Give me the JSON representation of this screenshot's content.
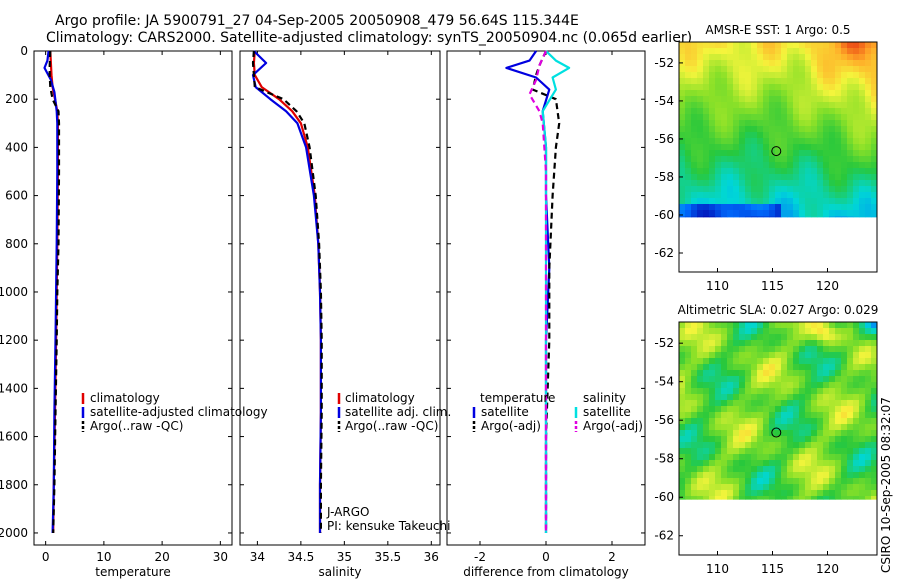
{
  "header": {
    "line1": "Argo profile: JA 5900791_27 04-Sep-2005 20050908_479 56.64S 115.344E",
    "line2": "Climatology: CARS2000. Satellite-adjusted climatology: synTS_20050904.nc (0.065d earlier)"
  },
  "colors": {
    "climatology": "#e00000",
    "satellite": "#0000e0",
    "argo": "#000000",
    "sal_satellite": "#00e0e0",
    "sal_argo": "#e000e0"
  },
  "chart_data": [
    {
      "type": "line",
      "name": "temperature-profile",
      "xlabel": "temperature",
      "ylabel": "",
      "xlim": [
        -2,
        32
      ],
      "ylim": [
        2050,
        0
      ],
      "xticks": [
        0,
        10,
        20,
        30
      ],
      "xtick_labels": [
        "0",
        "10",
        "20",
        "30"
      ],
      "yticks": [
        0,
        200,
        400,
        600,
        800,
        1000,
        1200,
        1400,
        1600,
        1800,
        2000
      ],
      "ytick_labels": [
        "0",
        "200",
        "400",
        "600",
        "800",
        "1000",
        "1200",
        "1400",
        "1600",
        "1800",
        "2000"
      ],
      "legend": [
        "climatology",
        "satellite-adjusted climatology",
        "Argo(..raw -QC)"
      ],
      "series": [
        {
          "name": "climatology",
          "color": "#e00000",
          "dashed": false,
          "x": [
            0.8,
            0.9,
            1.0,
            1.2,
            1.6,
            2.0,
            2.1,
            2.1,
            2.0,
            1.9,
            1.8,
            1.6,
            1.4,
            1.3
          ],
          "y": [
            0,
            50,
            100,
            150,
            200,
            250,
            300,
            500,
            800,
            1000,
            1200,
            1500,
            1800,
            2000
          ]
        },
        {
          "name": "satellite-adjusted climatology",
          "color": "#0000e0",
          "dashed": false,
          "x": [
            0.5,
            0.3,
            -0.2,
            0.9,
            1.5,
            1.9,
            2.0,
            2.0,
            1.9,
            1.8,
            1.7,
            1.5,
            1.4,
            1.2
          ],
          "y": [
            0,
            40,
            70,
            120,
            170,
            250,
            300,
            500,
            800,
            1000,
            1200,
            1500,
            1800,
            2000
          ]
        },
        {
          "name": "Argo(..raw -QC)",
          "color": "#000000",
          "dashed": true,
          "x": [
            0.8,
            0.7,
            0.7,
            0.8,
            1.2,
            2.2,
            2.3,
            2.3,
            2.2,
            2.0,
            1.9,
            1.7,
            1.5,
            1.3
          ],
          "y": [
            0,
            60,
            100,
            150,
            200,
            250,
            300,
            500,
            800,
            1000,
            1200,
            1500,
            1800,
            2000
          ]
        }
      ]
    },
    {
      "type": "line",
      "name": "salinity-profile",
      "xlabel": "salinity",
      "xlim": [
        33.8,
        36.1
      ],
      "ylim": [
        2050,
        0
      ],
      "xticks": [
        34,
        34.5,
        35,
        35.5,
        36
      ],
      "xtick_labels": [
        "34",
        "34.5",
        "35",
        "35.5",
        "36"
      ],
      "legend": [
        "climatology",
        "satellite adj. clim.",
        "Argo(..raw -QC)"
      ],
      "annotation": [
        "J-ARGO",
        "PI: kensuke Takeuchi"
      ],
      "series": [
        {
          "name": "climatology",
          "color": "#e00000",
          "dashed": false,
          "x": [
            33.97,
            33.96,
            33.97,
            34.05,
            34.25,
            34.4,
            34.5,
            34.58,
            34.66,
            34.7,
            34.72,
            34.73,
            34.73,
            34.72,
            34.72
          ],
          "y": [
            0,
            50,
            100,
            150,
            200,
            250,
            300,
            400,
            600,
            800,
            1000,
            1200,
            1500,
            1800,
            2000
          ]
        },
        {
          "name": "satellite adj. clim.",
          "color": "#0000e0",
          "dashed": false,
          "x": [
            33.96,
            34.1,
            33.95,
            33.98,
            34.15,
            34.33,
            34.46,
            34.56,
            34.65,
            34.7,
            34.72,
            34.73,
            34.73,
            34.72,
            34.72
          ],
          "y": [
            0,
            50,
            100,
            150,
            200,
            250,
            300,
            400,
            600,
            800,
            1000,
            1200,
            1500,
            1800,
            2000
          ]
        },
        {
          "name": "Argo(..raw -QC)",
          "color": "#000000",
          "dashed": true,
          "x": [
            33.96,
            33.95,
            33.96,
            33.97,
            34.3,
            34.45,
            34.54,
            34.6,
            34.67,
            34.71,
            34.73,
            34.74,
            34.74,
            34.73,
            34.73
          ],
          "y": [
            0,
            50,
            100,
            150,
            200,
            250,
            300,
            400,
            600,
            800,
            1000,
            1200,
            1500,
            1800,
            2000
          ]
        }
      ]
    },
    {
      "type": "line",
      "name": "difference-profile",
      "xlabel": "difference from climatology",
      "xlim": [
        -3,
        3
      ],
      "ylim": [
        2050,
        0
      ],
      "xticks": [
        -2,
        0,
        2
      ],
      "xtick_labels": [
        "-2",
        "0",
        "2"
      ],
      "legend_left_title": "temperature",
      "legend_right_title": "salinity",
      "legend": [
        "satellite",
        "Argo(-adj)",
        "satellite",
        "Argo(-adj)"
      ],
      "series": [
        {
          "name": "temperature satellite",
          "color": "#0000e0",
          "dashed": false,
          "x": [
            -0.3,
            -0.5,
            -1.2,
            -0.3,
            0.1,
            -0.1,
            0.0,
            0.0,
            0.1,
            0.0,
            0.0,
            0.0
          ],
          "y": [
            0,
            40,
            70,
            110,
            160,
            250,
            400,
            600,
            900,
            1200,
            1600,
            2000
          ]
        },
        {
          "name": "temperature Argo(-adj)",
          "color": "#000000",
          "dashed": true,
          "x": [
            0.0,
            -0.2,
            -0.3,
            -0.4,
            0.3,
            0.4,
            0.3,
            0.2,
            0.1,
            0.1,
            0.0,
            0.0
          ],
          "y": [
            0,
            60,
            100,
            160,
            200,
            300,
            400,
            600,
            900,
            1200,
            1600,
            2000
          ]
        },
        {
          "name": "salinity satellite",
          "color": "#00e0e0",
          "dashed": false,
          "x": [
            0.0,
            0.3,
            0.7,
            0.2,
            0.3,
            -0.1,
            0.0,
            0.0,
            0.0,
            0.0
          ],
          "y": [
            0,
            40,
            70,
            110,
            160,
            250,
            400,
            800,
            1400,
            2000
          ]
        },
        {
          "name": "salinity Argo(-adj)",
          "color": "#e000e0",
          "dashed": true,
          "x": [
            0.0,
            -0.2,
            -0.3,
            -0.5,
            -0.2,
            -0.1,
            0.0,
            0.0,
            0.0,
            0.0
          ],
          "y": [
            0,
            60,
            120,
            180,
            250,
            300,
            500,
            800,
            1400,
            2000
          ]
        }
      ]
    },
    {
      "type": "heatmap",
      "name": "sst-map",
      "title": "AMSR-E SST: 1 Argo: 0.5",
      "xlim": [
        106.5,
        124.5
      ],
      "ylim": [
        -63,
        -50.9
      ],
      "xticks": [
        110,
        115,
        120
      ],
      "xtick_labels": [
        "110",
        "115",
        "120"
      ],
      "yticks": [
        -52,
        -54,
        -56,
        -58,
        -60,
        -62
      ],
      "ytick_labels": [
        "-52",
        "-54",
        "-56",
        "-58",
        "-60",
        "-62"
      ],
      "marker": {
        "lon": 115.344,
        "lat": -56.64
      },
      "data_bottom_lat": -60.1
    },
    {
      "type": "heatmap",
      "name": "sla-map",
      "title": "Altimetric SLA: 0.027 Argo: 0.029",
      "xlim": [
        106.5,
        124.5
      ],
      "ylim": [
        -63,
        -50.9
      ],
      "xticks": [
        110,
        115,
        120
      ],
      "xtick_labels": [
        "110",
        "115",
        "120"
      ],
      "yticks": [
        -52,
        -54,
        -56,
        -58,
        -60,
        -62
      ],
      "ytick_labels": [
        "-52",
        "-54",
        "-56",
        "-58",
        "-60",
        "-62"
      ],
      "marker": {
        "lon": 115.344,
        "lat": -56.64
      },
      "data_bottom_lat": -60.1
    }
  ],
  "timestamp": "CSIRO 10-Sep-2005 08:32:07"
}
